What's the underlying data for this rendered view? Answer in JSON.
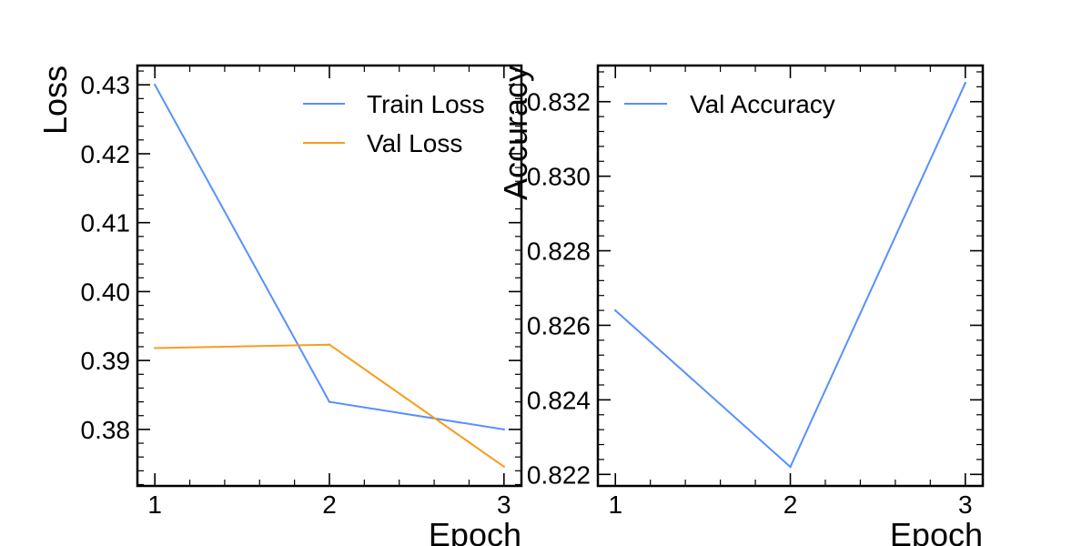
{
  "chart_data": [
    {
      "type": "line",
      "xlabel": "Epoch",
      "ylabel": "Loss",
      "x": [
        1,
        2,
        3
      ],
      "xlim": [
        0.9,
        3.1
      ],
      "ylim": [
        0.3718,
        0.4328
      ],
      "xticks": [
        1,
        2,
        3
      ],
      "xtick_labels": [
        "1",
        "2",
        "3"
      ],
      "yticks": [
        0.38,
        0.39,
        0.4,
        0.41,
        0.42,
        0.43
      ],
      "ytick_labels": [
        "0.38",
        "0.39",
        "0.40",
        "0.41",
        "0.42",
        "0.43"
      ],
      "legend_position": "top-right",
      "grid": false,
      "series": [
        {
          "name": "Train Loss",
          "color": "#5790fc",
          "values": [
            0.43,
            0.384,
            0.38
          ]
        },
        {
          "name": "Val Loss",
          "color": "#f89c20",
          "values": [
            0.3918,
            0.3923,
            0.3746
          ]
        }
      ]
    },
    {
      "type": "line",
      "xlabel": "Epoch",
      "ylabel": "Accuracy",
      "x": [
        1,
        2,
        3
      ],
      "xlim": [
        0.9,
        3.1
      ],
      "ylim": [
        0.82169,
        0.83297
      ],
      "xticks": [
        1,
        2,
        3
      ],
      "xtick_labels": [
        "1",
        "2",
        "3"
      ],
      "yticks": [
        0.822,
        0.824,
        0.826,
        0.828,
        0.83,
        0.832
      ],
      "ytick_labels": [
        "0.822",
        "0.824",
        "0.826",
        "0.828",
        "0.830",
        "0.832"
      ],
      "legend_position": "top-left",
      "grid": false,
      "series": [
        {
          "name": "Val Accuracy",
          "color": "#5790fc",
          "values": [
            0.8264,
            0.8222,
            0.8325
          ]
        }
      ]
    }
  ]
}
